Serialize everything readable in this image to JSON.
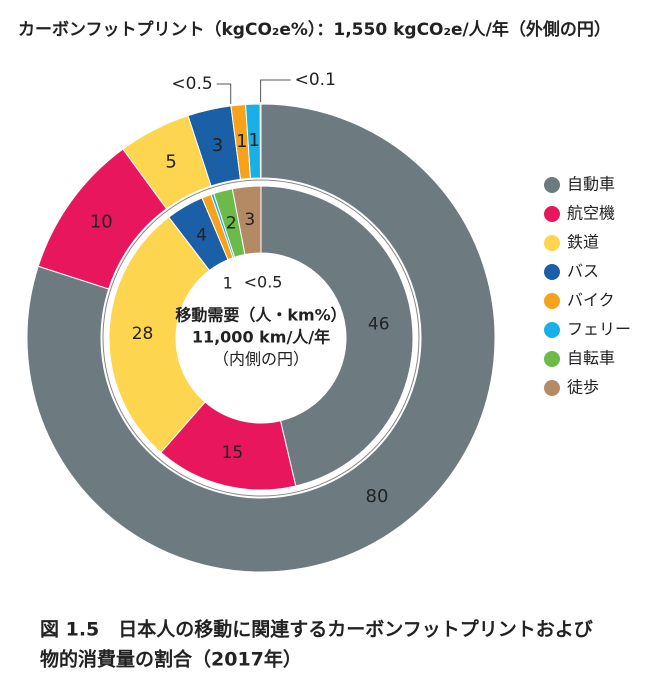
{
  "chart_data": {
    "type": "donut",
    "title": "カーボンフットプリント（kgCO₂e%）：1,550 kgCO₂e/人/年（外側の円）",
    "categories": [
      "自動車",
      "航空機",
      "鉄道",
      "バス",
      "バイク",
      "フェリー",
      "自転車",
      "徒歩"
    ],
    "colors": [
      "#6d7a80",
      "#e8175d",
      "#fdd54f",
      "#1b5fa6",
      "#f7a21b",
      "#19b0e8",
      "#6cbb4a",
      "#b48a64"
    ],
    "outer": {
      "values": [
        80,
        10,
        5,
        3,
        1,
        1,
        0.05,
        null
      ],
      "value_labels": [
        "80",
        "10",
        "5",
        "3",
        "1",
        "1",
        "<0.1",
        null
      ]
    },
    "inner": {
      "values": [
        46,
        15,
        28,
        4,
        1,
        0.3,
        2,
        3
      ],
      "value_labels": [
        "46",
        "15",
        "28",
        "4",
        "1",
        "<0.5",
        "2",
        "3"
      ]
    },
    "annotations": [
      "<0.5"
    ],
    "center_text": [
      "移動需要（人・km%）",
      "11,000 km/人/年",
      "（内側の円）"
    ],
    "caption": [
      "図 1.5　日本人の移動に関連するカーボンフットプリントおよび",
      "物的消費量の割合（2017年）"
    ],
    "legend": "right"
  }
}
